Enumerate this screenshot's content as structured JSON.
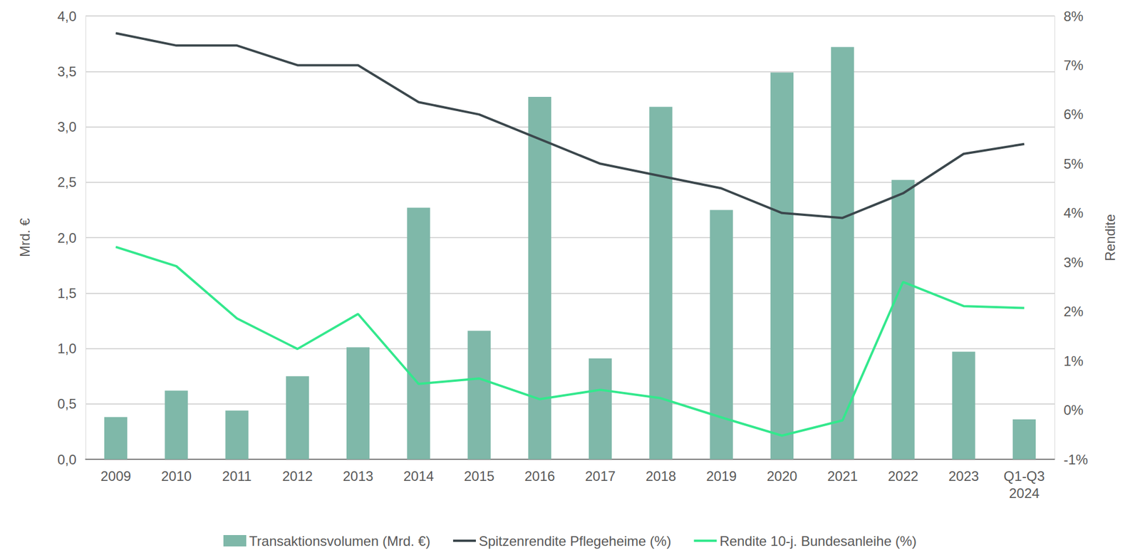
{
  "chart_data": {
    "type": "bar",
    "categories": [
      "2009",
      "2010",
      "2011",
      "2012",
      "2013",
      "2014",
      "2015",
      "2016",
      "2017",
      "2018",
      "2019",
      "2020",
      "2021",
      "2022",
      "2023",
      "Q1-Q3\n2024"
    ],
    "series": [
      {
        "name": "Transaktionsvolumen (Mrd. €)",
        "type": "bar",
        "color": "#7fb8a9",
        "values": [
          0.38,
          0.62,
          0.44,
          0.75,
          1.01,
          2.27,
          1.16,
          3.27,
          0.91,
          3.18,
          2.25,
          3.49,
          3.72,
          2.52,
          0.97,
          0.36
        ]
      },
      {
        "name": "Spitzenrendite Pflegeheime (%)",
        "type": "line",
        "axis": "y2",
        "color": "#3b474c",
        "line_style": "solid",
        "values": [
          7.65,
          7.4,
          7.4,
          7.0,
          7.0,
          6.25,
          6.0,
          5.5,
          5.0,
          4.75,
          4.5,
          4.0,
          3.9,
          4.4,
          5.2,
          5.4
        ]
      },
      {
        "name": "Rendite 10-j. Bundesanleihe (%)",
        "type": "line",
        "axis": "y2",
        "color": "#33e88d",
        "line_style": "solid",
        "values": [
          3.31,
          2.92,
          1.86,
          1.24,
          1.95,
          0.53,
          0.64,
          0.22,
          0.41,
          0.24,
          -0.15,
          -0.52,
          -0.21,
          2.6,
          2.11,
          2.07
        ]
      }
    ],
    "y_label": "Mrd. €",
    "y2_label": "Rendite",
    "ylim": [
      0,
      4
    ],
    "yticks": [
      {
        "value": 0,
        "label": "0,0"
      },
      {
        "value": 0.5,
        "label": "0,5"
      },
      {
        "value": 1,
        "label": "1,0"
      },
      {
        "value": 1.5,
        "label": "1,5"
      },
      {
        "value": 2,
        "label": "2,0"
      },
      {
        "value": 2.5,
        "label": "2,5"
      },
      {
        "value": 3,
        "label": "3,0"
      },
      {
        "value": 3.5,
        "label": "3,5"
      },
      {
        "value": 4,
        "label": "4,0"
      }
    ],
    "y2lim": [
      -1,
      8
    ],
    "y2ticks": [
      {
        "value": -1,
        "label": "-1%"
      },
      {
        "value": 0,
        "label": "0%"
      },
      {
        "value": 1,
        "label": "1%"
      },
      {
        "value": 2,
        "label": "2%"
      },
      {
        "value": 3,
        "label": "3%"
      },
      {
        "value": 4,
        "label": "4%"
      },
      {
        "value": 5,
        "label": "5%"
      },
      {
        "value": 6,
        "label": "6%"
      },
      {
        "value": 7,
        "label": "7%"
      },
      {
        "value": 8,
        "label": "8%"
      }
    ],
    "grid": true,
    "legend": "bottom"
  }
}
